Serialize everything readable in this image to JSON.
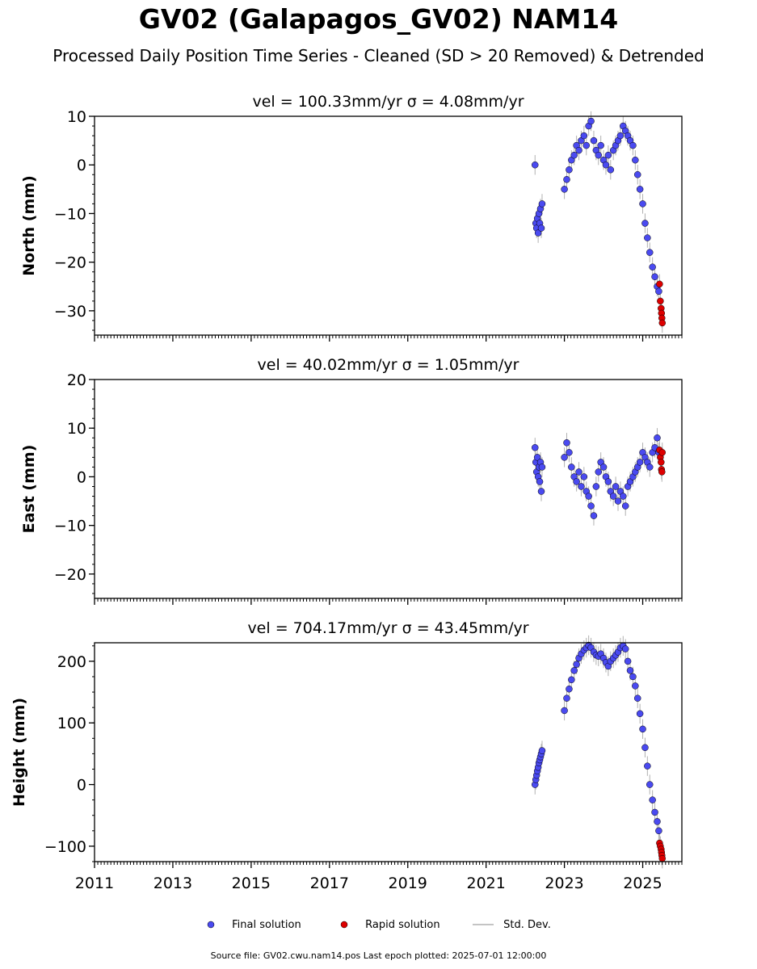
{
  "title": "GV02 (Galapagos_GV02) NAM14",
  "subtitle": "Processed Daily Position Time Series - Cleaned (SD > 20 Removed) & Detrended",
  "colors": {
    "final": "#4a4af0",
    "rapid": "#dd0000",
    "stddev": "#b0b0b0",
    "edge": "#000000"
  },
  "legend": [
    {
      "label": "Final solution",
      "marker": "circle",
      "color": "#4a4af0"
    },
    {
      "label": "Rapid solution",
      "marker": "circle",
      "color": "#dd0000"
    },
    {
      "label": "Std. Dev.",
      "marker": "line",
      "color": "#b0b0b0"
    }
  ],
  "source_text": "Source file: GV02.cwu.nam14.pos  Last epoch plotted: 2025-07-01 12:00:00",
  "chart_data": [
    {
      "type": "scatter",
      "title": "vel = 100.33mm/yr   σ = 4.08mm/yr",
      "ylabel": "North (mm)",
      "xlim": [
        2011.0,
        2026.0
      ],
      "ylim": [
        -35,
        10
      ],
      "yticks": [
        10,
        0,
        -10,
        -20,
        -30
      ],
      "ytick_labels": [
        "10",
        "0",
        "−10",
        "−20",
        "−30"
      ],
      "series": [
        {
          "name": "Final solution",
          "color": "#4a4af0",
          "x": [
            2022.25,
            2022.27,
            2022.29,
            2022.31,
            2022.33,
            2022.35,
            2022.37,
            2022.39,
            2022.41,
            2022.43,
            2023.0,
            2023.06,
            2023.12,
            2023.18,
            2023.25,
            2023.31,
            2023.37,
            2023.43,
            2023.5,
            2023.56,
            2023.62,
            2023.68,
            2023.75,
            2023.81,
            2023.87,
            2023.93,
            2024.0,
            2024.06,
            2024.12,
            2024.18,
            2024.25,
            2024.31,
            2024.37,
            2024.43,
            2024.5,
            2024.56,
            2024.62,
            2024.68,
            2024.75,
            2024.81,
            2024.87,
            2024.93,
            2025.0,
            2025.06,
            2025.12,
            2025.18,
            2025.25,
            2025.31,
            2025.37,
            2025.41
          ],
          "y": [
            0,
            -12,
            -13,
            -11,
            -14,
            -10,
            -12,
            -9,
            -13,
            -8,
            -5,
            -3,
            -1,
            1,
            2,
            4,
            3,
            5,
            6,
            4,
            8,
            9,
            5,
            3,
            2,
            4,
            1,
            0,
            2,
            -1,
            3,
            4,
            5,
            6,
            8,
            7,
            6,
            5,
            4,
            1,
            -2,
            -5,
            -8,
            -12,
            -15,
            -18,
            -21,
            -23,
            -25,
            -26
          ]
        },
        {
          "name": "Rapid solution",
          "color": "#dd0000",
          "x": [
            2025.43,
            2025.45,
            2025.47,
            2025.48,
            2025.49,
            2025.5
          ],
          "y": [
            -24.5,
            -28,
            -29.5,
            -30.5,
            -31.5,
            -32.5
          ]
        }
      ]
    },
    {
      "type": "scatter",
      "title": "vel = 40.02mm/yr   σ = 1.05mm/yr",
      "ylabel": "East (mm)",
      "xlim": [
        2011.0,
        2026.0
      ],
      "ylim": [
        -25,
        20
      ],
      "yticks": [
        20,
        10,
        0,
        -10,
        -20
      ],
      "ytick_labels": [
        "20",
        "10",
        "0",
        "−10",
        "−20"
      ],
      "series": [
        {
          "name": "Final solution",
          "color": "#4a4af0",
          "x": [
            2022.25,
            2022.27,
            2022.29,
            2022.31,
            2022.33,
            2022.35,
            2022.37,
            2022.39,
            2022.41,
            2022.43,
            2023.0,
            2023.06,
            2023.12,
            2023.18,
            2023.25,
            2023.31,
            2023.37,
            2023.43,
            2023.5,
            2023.56,
            2023.62,
            2023.68,
            2023.75,
            2023.81,
            2023.87,
            2023.93,
            2024.0,
            2024.06,
            2024.12,
            2024.18,
            2024.25,
            2024.31,
            2024.37,
            2024.43,
            2024.5,
            2024.56,
            2024.62,
            2024.68,
            2024.75,
            2024.81,
            2024.87,
            2024.93,
            2025.0,
            2025.06,
            2025.12,
            2025.18,
            2025.25,
            2025.31,
            2025.37,
            2025.41
          ],
          "y": [
            6,
            3,
            1,
            4,
            0,
            2,
            -1,
            3,
            -3,
            2,
            4,
            7,
            5,
            2,
            0,
            -1,
            1,
            -2,
            0,
            -3,
            -4,
            -6,
            -8,
            -2,
            1,
            3,
            2,
            0,
            -1,
            -3,
            -4,
            -2,
            -5,
            -3,
            -4,
            -6,
            -2,
            -1,
            0,
            1,
            2,
            3,
            5,
            4,
            3,
            2,
            5,
            6,
            8,
            5
          ]
        },
        {
          "name": "Rapid solution",
          "color": "#dd0000",
          "x": [
            2025.43,
            2025.45,
            2025.47,
            2025.48,
            2025.49,
            2025.5
          ],
          "y": [
            5.5,
            4,
            3,
            1.5,
            1,
            5
          ]
        }
      ]
    },
    {
      "type": "scatter",
      "title": "vel = 704.17mm/yr   σ = 43.45mm/yr",
      "ylabel": "Height (mm)",
      "xlim": [
        2011.0,
        2026.0
      ],
      "ylim": [
        -125,
        230
      ],
      "yticks": [
        200,
        100,
        0,
        -100
      ],
      "ytick_labels": [
        "200",
        "100",
        "0",
        "−100"
      ],
      "xticks": [
        2011,
        2013,
        2015,
        2017,
        2019,
        2021,
        2023,
        2025
      ],
      "xtick_labels": [
        "2011",
        "2013",
        "2015",
        "2017",
        "2019",
        "2021",
        "2023",
        "2025"
      ],
      "series": [
        {
          "name": "Final solution",
          "color": "#4a4af0",
          "x": [
            2022.25,
            2022.27,
            2022.29,
            2022.31,
            2022.33,
            2022.35,
            2022.37,
            2022.39,
            2022.41,
            2022.43,
            2023.0,
            2023.06,
            2023.12,
            2023.18,
            2023.25,
            2023.31,
            2023.37,
            2023.43,
            2023.5,
            2023.56,
            2023.62,
            2023.68,
            2023.75,
            2023.81,
            2023.87,
            2023.93,
            2024.0,
            2024.06,
            2024.12,
            2024.18,
            2024.25,
            2024.31,
            2024.37,
            2024.43,
            2024.5,
            2024.56,
            2024.62,
            2024.68,
            2024.75,
            2024.81,
            2024.87,
            2024.93,
            2025.0,
            2025.06,
            2025.12,
            2025.18,
            2025.25,
            2025.31,
            2025.37,
            2025.41
          ],
          "y": [
            0,
            8,
            15,
            22,
            28,
            35,
            40,
            45,
            50,
            55,
            120,
            140,
            155,
            170,
            185,
            195,
            205,
            212,
            218,
            222,
            226,
            222,
            215,
            210,
            208,
            212,
            205,
            198,
            192,
            200,
            205,
            210,
            215,
            222,
            225,
            220,
            200,
            185,
            175,
            160,
            140,
            115,
            90,
            60,
            30,
            0,
            -25,
            -45,
            -60,
            -75
          ]
        },
        {
          "name": "Rapid solution",
          "color": "#dd0000",
          "x": [
            2025.43,
            2025.45,
            2025.47,
            2025.48,
            2025.49,
            2025.5
          ],
          "y": [
            -95,
            -100,
            -105,
            -110,
            -115,
            -120
          ]
        }
      ]
    }
  ]
}
